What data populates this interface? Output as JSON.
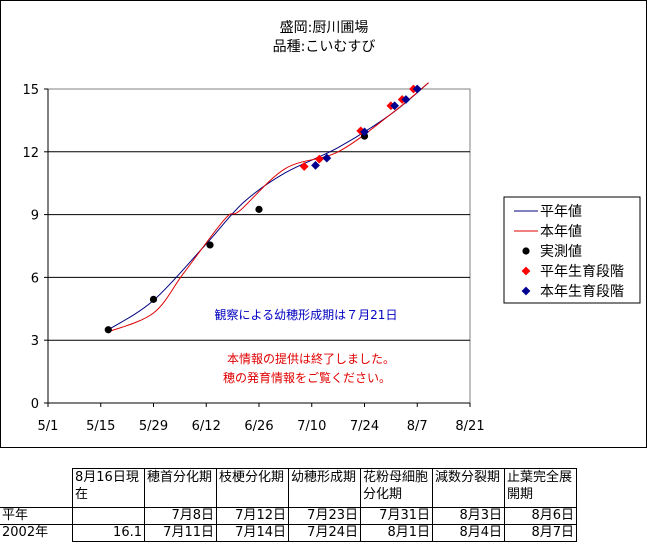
{
  "chart_data": {
    "type": "line",
    "title": "盛岡:厨川圃場",
    "subtitle": "品種:こいむすび",
    "x_ticks": [
      "5/1",
      "5/15",
      "5/29",
      "6/12",
      "6/26",
      "7/10",
      "7/24",
      "8/7",
      "8/21"
    ],
    "xlim": [
      "5/1",
      "8/21"
    ],
    "ylim": [
      0,
      15
    ],
    "y_ticks": [
      "0",
      "3",
      "6",
      "9",
      "12",
      "15"
    ],
    "grid": "horizontal",
    "legend_position": "right",
    "series": [
      {
        "name": "平年値",
        "kind": "line",
        "color": "#000080",
        "x": [
          "5/17",
          "5/29",
          "6/12",
          "6/22",
          "7/3",
          "7/17",
          "7/31",
          "8/10"
        ],
        "y": [
          3.5,
          4.9,
          7.6,
          9.6,
          11.0,
          12.2,
          13.8,
          15.3
        ]
      },
      {
        "name": "本年値",
        "kind": "line",
        "color": "#e00000",
        "x": [
          "5/17",
          "5/29",
          "6/6",
          "6/17",
          "6/21",
          "7/3",
          "7/17",
          "7/31",
          "8/10"
        ],
        "y": [
          3.4,
          4.3,
          6.2,
          8.8,
          9.2,
          11.2,
          12.0,
          13.8,
          15.3
        ]
      },
      {
        "name": "実測値",
        "kind": "marker",
        "marker": "circle",
        "color": "#000000",
        "x": [
          "5/17",
          "5/29",
          "6/13",
          "6/26",
          "7/24"
        ],
        "y": [
          3.5,
          4.95,
          7.55,
          9.25,
          12.75
        ]
      },
      {
        "name": "平年生育段階",
        "kind": "marker",
        "marker": "diamond",
        "color": "#ff0000",
        "x": [
          "7/8",
          "7/12",
          "7/23",
          "7/31",
          "8/3",
          "8/6"
        ],
        "y": [
          11.3,
          11.65,
          13.0,
          14.2,
          14.5,
          15.0
        ]
      },
      {
        "name": "本年生育段階",
        "kind": "marker",
        "marker": "diamond",
        "color": "#000090",
        "x": [
          "7/11",
          "7/14",
          "7/24",
          "8/1",
          "8/4",
          "8/7"
        ],
        "y": [
          11.35,
          11.7,
          12.95,
          14.2,
          14.5,
          15.0
        ]
      }
    ],
    "annotations": [
      {
        "text": "観察による幼穂形成期は７月21日",
        "color": "#0000c0"
      },
      {
        "text": "本情報の提供は終了しました。",
        "color": "#e00000"
      },
      {
        "text": "穂の発育情報をご覧ください。",
        "color": "#e00000"
      }
    ]
  },
  "table": {
    "headers": [
      "8月16日現在",
      "穂首分化期",
      "枝梗分化期",
      "幼穂形成期",
      "花粉母細胞分化期",
      "減数分裂期",
      "止葉完全展開期"
    ],
    "rows": [
      {
        "label": "平年",
        "cells": [
          "",
          "7月8日",
          "7月12日",
          "7月23日",
          "7月31日",
          "8月3日",
          "8月6日"
        ]
      },
      {
        "label": "2002年",
        "cells": [
          "16.1",
          "7月11日",
          "7月14日",
          "7月24日",
          "8月1日",
          "8月4日",
          "8月7日"
        ]
      }
    ]
  }
}
